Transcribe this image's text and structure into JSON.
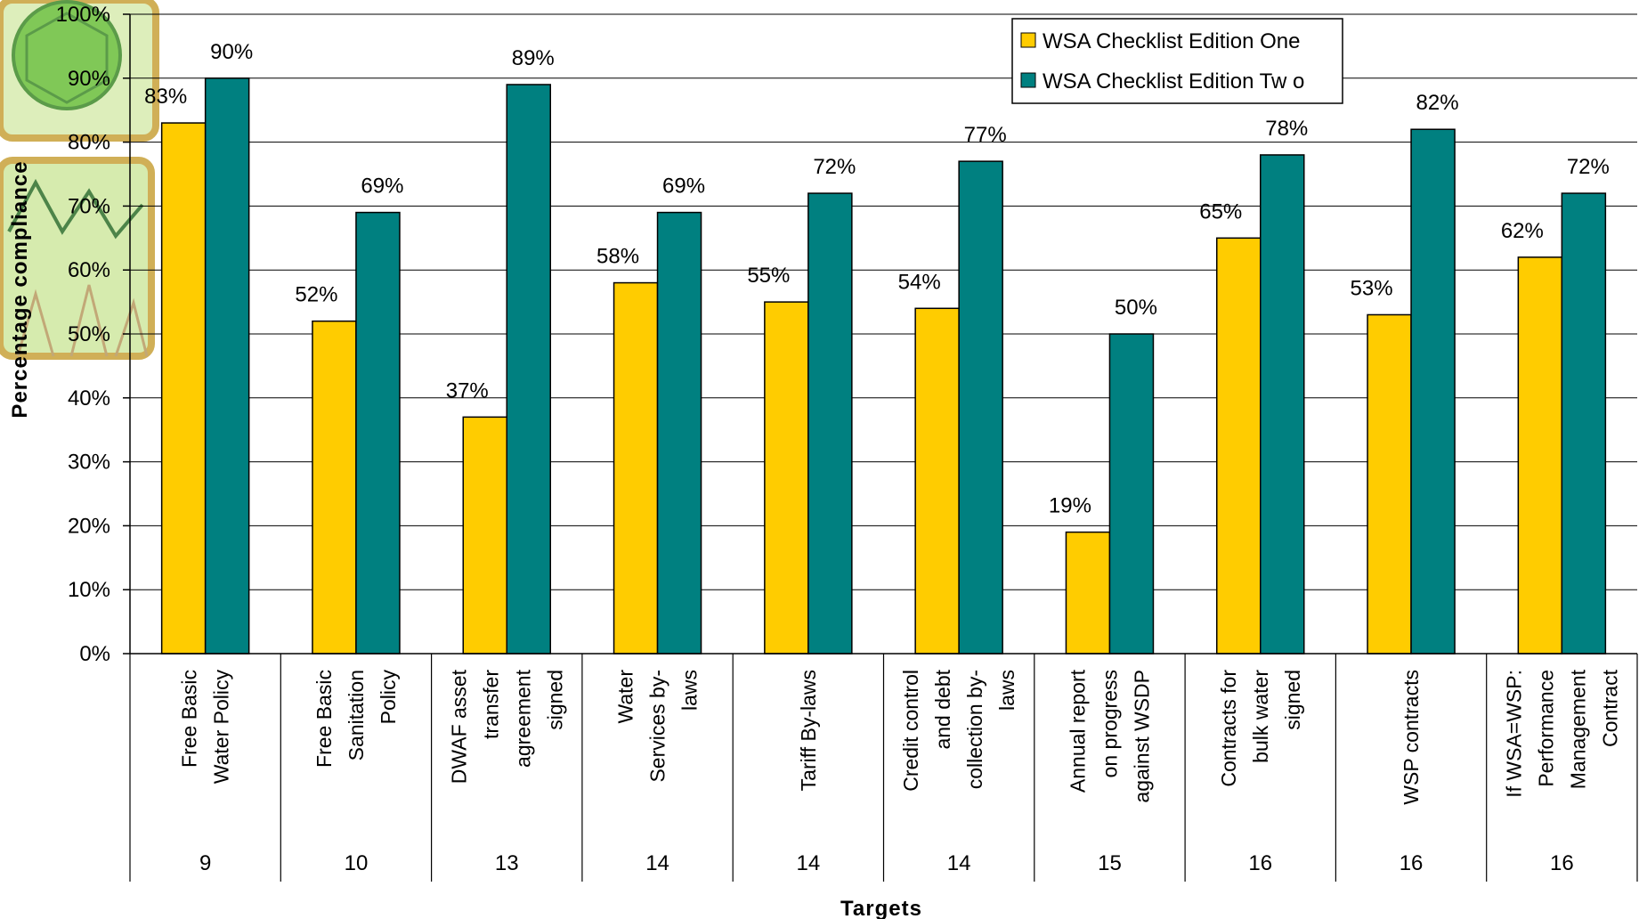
{
  "colors": {
    "edition_one": "#FFCC00",
    "edition_two": "#008080",
    "gridline": "#000000",
    "bar_stroke": "#000000",
    "logo_green": "#6bbf3a",
    "logo_frame": "#c8a23a"
  },
  "logo": {
    "name": "logo-emblem"
  },
  "chart_data": {
    "type": "bar",
    "xlabel": "Targets",
    "ylabel": "Percentage compliance",
    "ylim": [
      0,
      100
    ],
    "yticks": [
      "0%",
      "10%",
      "20%",
      "30%",
      "40%",
      "50%",
      "60%",
      "70%",
      "80%",
      "90%",
      "100%"
    ],
    "categories": [
      {
        "lines": [
          "Free Basic",
          "Water Policy"
        ],
        "target": "9"
      },
      {
        "lines": [
          "Free Basic",
          "Sanitation",
          "Policy"
        ],
        "target": "10"
      },
      {
        "lines": [
          "DWAF asset",
          "transfer",
          "agreement",
          "signed"
        ],
        "target": "13"
      },
      {
        "lines": [
          "Water",
          "Services by-",
          "laws"
        ],
        "target": "14"
      },
      {
        "lines": [
          "Tariff By-laws"
        ],
        "target": "14"
      },
      {
        "lines": [
          "Credit control",
          "and debt",
          "collection by-",
          "laws"
        ],
        "target": "14"
      },
      {
        "lines": [
          "Annual report",
          "on progress",
          "against WSDP"
        ],
        "target": "15"
      },
      {
        "lines": [
          "Contracts for",
          "bulk water",
          "signed"
        ],
        "target": "16"
      },
      {
        "lines": [
          "WSP contracts"
        ],
        "target": "16"
      },
      {
        "lines": [
          "If WSA=WSP:",
          "Performance",
          "Management",
          "Contract"
        ],
        "target": "16"
      }
    ],
    "series": [
      {
        "name": "WSA Checklist Edition One",
        "values": [
          83,
          52,
          37,
          58,
          55,
          54,
          19,
          65,
          53,
          62
        ],
        "labels": [
          "83%",
          "52%",
          "37%",
          "58%",
          "55%",
          "54%",
          "19%",
          "65%",
          "53%",
          "62%"
        ]
      },
      {
        "name": "WSA Checklist Edition Tw o",
        "values": [
          90,
          69,
          89,
          69,
          72,
          77,
          50,
          78,
          82,
          72
        ],
        "labels": [
          "90%",
          "69%",
          "89%",
          "69%",
          "72%",
          "77%",
          "50%",
          "78%",
          "82%",
          "72%"
        ]
      }
    ],
    "grid": true,
    "legend": "top-right"
  }
}
